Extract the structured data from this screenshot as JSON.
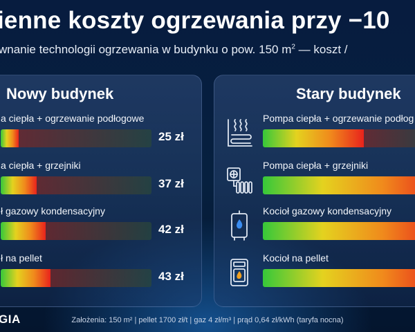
{
  "header": {
    "title": "ienne koszty ogrzewania przy −10",
    "subtitle_pre": "wnanie technologii ogrzewania w budynku o pow. 150 m",
    "subtitle_sup": "2",
    "subtitle_post": " — koszt /"
  },
  "panels": {
    "new": {
      "title": "Nowy budynek",
      "rows": [
        {
          "label": "a ciepła + ogrzewanie podłogowe",
          "cost": "25 zł",
          "level": 0.12
        },
        {
          "label": "a ciepła + grzejniki",
          "cost": "37 zł",
          "level": 0.24
        },
        {
          "label": "ł gazowy kondensacyjny",
          "cost": "42 zł",
          "level": 0.3
        },
        {
          "label": "ł na pellet",
          "cost": "43 zł",
          "level": 0.33
        }
      ]
    },
    "old": {
      "title": "Stary budynek",
      "rows": [
        {
          "label": "Pompa ciepła + ogrzewanie podłog",
          "icon": "floor-heating-icon",
          "level": 0.56
        },
        {
          "label": "Pompa ciepła + grzejniki",
          "icon": "heat-pump-radiator-icon",
          "level": 1.0
        },
        {
          "label": "Kocioł gazowy kondensacyjny",
          "icon": "gas-boiler-icon",
          "level": 1.0
        },
        {
          "label": "Kocioł na pellet",
          "icon": "pellet-boiler-icon",
          "level": 1.0
        }
      ]
    }
  },
  "footer": {
    "assumptions": "Założenia: 150 m² | pellet 1700 zł/t | gaz 4 zł/m³ | prąd 0,64 zł/kWh (taryfa nocna)",
    "logo": "GIA"
  },
  "colors": {
    "background": "#061a3a",
    "green": "#36c83a",
    "yellow": "#e4d21f",
    "orange": "#f08a1c",
    "red": "#e8231c"
  }
}
